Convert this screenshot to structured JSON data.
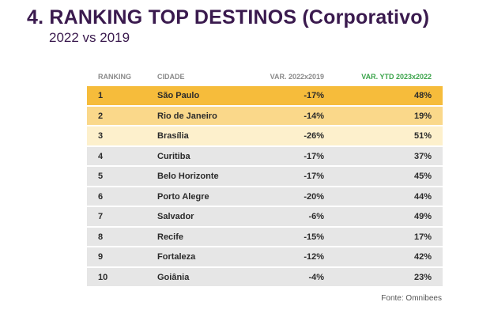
{
  "title": "4. RANKING TOP DESTINOS (Corporativo)",
  "subtitle": "2022 vs 2019",
  "table": {
    "headers": {
      "rank": "RANKING",
      "city": "CIDADE",
      "var": "VAR. 2022x2019",
      "ytd": "VAR. YTD 2023x2022"
    },
    "rows": [
      {
        "rank": "1",
        "city": "São Paulo",
        "var": "-17%",
        "ytd": "48%"
      },
      {
        "rank": "2",
        "city": "Rio de Janeiro",
        "var": "-14%",
        "ytd": "19%"
      },
      {
        "rank": "3",
        "city": "Brasília",
        "var": "-26%",
        "ytd": "51%"
      },
      {
        "rank": "4",
        "city": "Curitiba",
        "var": "-17%",
        "ytd": "37%"
      },
      {
        "rank": "5",
        "city": "Belo Horizonte",
        "var": "-17%",
        "ytd": "45%"
      },
      {
        "rank": "6",
        "city": "Porto Alegre",
        "var": "-20%",
        "ytd": "44%"
      },
      {
        "rank": "7",
        "city": "Salvador",
        "var": "-6%",
        "ytd": "49%"
      },
      {
        "rank": "8",
        "city": "Recife",
        "var": "-15%",
        "ytd": "17%"
      },
      {
        "rank": "9",
        "city": "Fortaleza",
        "var": "-12%",
        "ytd": "42%"
      },
      {
        "rank": "10",
        "city": "Goiânia",
        "var": "-4%",
        "ytd": "23%"
      }
    ]
  },
  "source": "Fonte: Omnibees",
  "colors": {
    "title": "#3a1a4e",
    "ytd_header": "#3aa34a",
    "row1": "#f6bc3b",
    "row2": "#fad88a",
    "row3": "#fdf0cc",
    "row_default": "#e6e6e6"
  }
}
